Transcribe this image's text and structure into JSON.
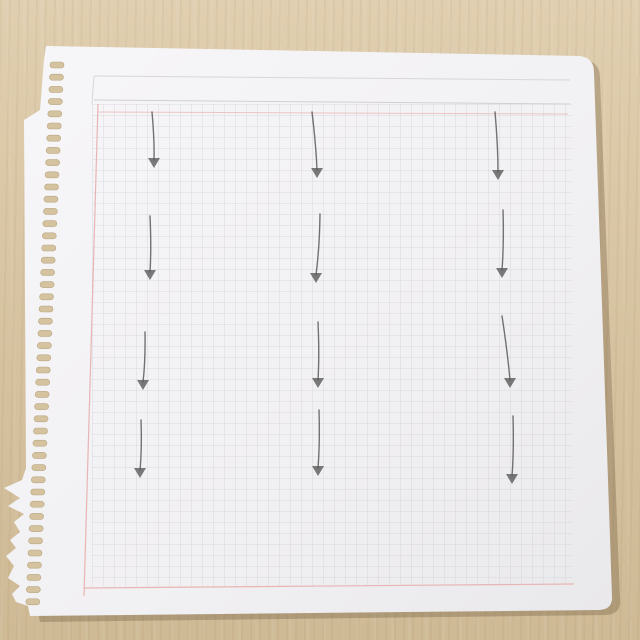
{
  "scene": {
    "subject": "grid-notebook-paper-with-hand-drawn-arrows",
    "surface": "wooden-desk",
    "colors": {
      "desk": "#d8c6a4",
      "paper": "#f6f5f6",
      "grid_line": "#cfcfd4",
      "margin_line": "#e8b7b7",
      "pencil": "#5a5a5a"
    },
    "arrows": {
      "count": 12,
      "direction": "down",
      "rows": 4,
      "columns": 3
    }
  }
}
